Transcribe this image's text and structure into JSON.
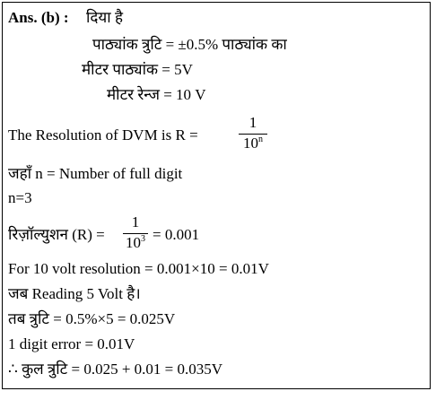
{
  "lines": {
    "l1_ans": "Ans. (b) :",
    "l1_hi": "दिया है",
    "l2": "पाठ्यांक त्रुटि = ±0.5% पाठ्यांक का",
    "l3": "मीटर पाठ्यांक = 5V",
    "l4": "मीटर रेन्ज = 10 V",
    "l5_text": "The Resolution of DVM is  R =",
    "l5_num": "1",
    "l5_den_base": "10",
    "l5_den_exp": "n",
    "l6": "जहाँ n = Number of full digit",
    "l7": "n=3",
    "l8_text": "रिज़ॉल्युशन (R) =",
    "l8_num": "1",
    "l8_den_base": "10",
    "l8_den_exp": "3",
    "l8_tail": "= 0.001",
    "l9": "For 10 volt resolution = 0.001×10 = 0.01V",
    "l10": "जब Reading 5 Volt  है।",
    "l11": "तब त्रुटि = 0.5%×5 = 0.025V",
    "l12": "1 digit error = 0.01V",
    "l13": "∴ कुल त्रुटि  = 0.025 + 0.01 = 0.035V"
  }
}
